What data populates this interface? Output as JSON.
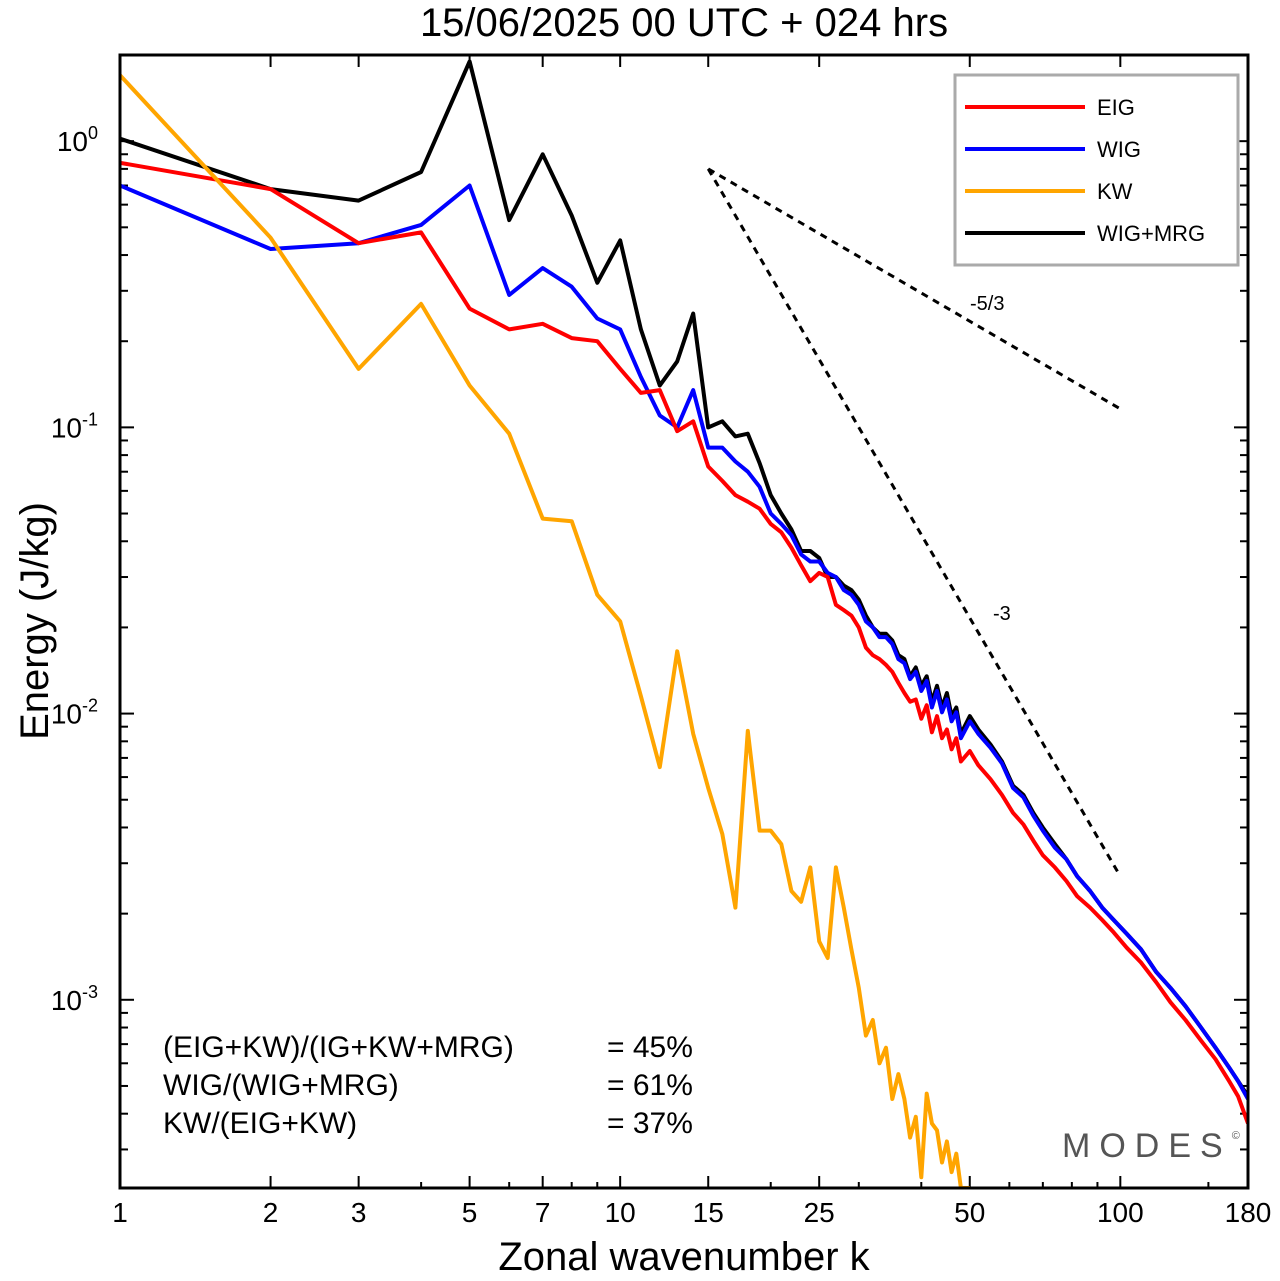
{
  "title": "15/06/2025  00 UTC  + 024 hrs",
  "chart_data": {
    "type": "line",
    "xlabel": "Zonal wavenumber k",
    "ylabel": "Energy (J/kg)",
    "x_scale": "log",
    "y_scale": "log",
    "xlim": [
      1,
      180
    ],
    "ylim": [
      0.00022,
      2.0
    ],
    "x_ticks": [
      1,
      2,
      3,
      5,
      7,
      10,
      15,
      25,
      50,
      100,
      180
    ],
    "y_ticks": [
      {
        "value": 1,
        "base": "10",
        "exp": "0"
      },
      {
        "value": 0.1,
        "base": "10",
        "exp": "-1"
      },
      {
        "value": 0.01,
        "base": "10",
        "exp": "-2"
      },
      {
        "value": 0.001,
        "base": "10",
        "exp": "-3"
      }
    ],
    "legend_position": "top-right",
    "series": [
      {
        "name": "WIG+MRG",
        "color": "#000000",
        "points": [
          [
            1,
            1.02
          ],
          [
            2,
            0.68
          ],
          [
            3,
            0.62
          ],
          [
            4,
            0.78
          ],
          [
            5,
            1.9
          ],
          [
            6,
            0.53
          ],
          [
            7,
            0.9
          ],
          [
            8,
            0.55
          ],
          [
            9,
            0.32
          ],
          [
            10,
            0.45
          ],
          [
            11,
            0.22
          ],
          [
            12,
            0.14
          ],
          [
            13,
            0.17
          ],
          [
            14,
            0.25
          ],
          [
            15,
            0.1
          ],
          [
            16,
            0.105
          ],
          [
            17,
            0.093
          ],
          [
            18,
            0.095
          ],
          [
            19,
            0.075
          ],
          [
            20,
            0.058
          ],
          [
            21,
            0.05
          ],
          [
            22,
            0.044
          ],
          [
            23,
            0.037
          ],
          [
            24,
            0.037
          ],
          [
            25,
            0.035
          ],
          [
            26,
            0.03
          ],
          [
            27,
            0.03
          ],
          [
            28,
            0.028
          ],
          [
            29,
            0.027
          ],
          [
            30,
            0.025
          ],
          [
            31,
            0.022
          ],
          [
            32,
            0.02
          ],
          [
            33,
            0.019
          ],
          [
            34,
            0.019
          ],
          [
            35,
            0.018
          ],
          [
            36,
            0.016
          ],
          [
            37,
            0.0155
          ],
          [
            38,
            0.0135
          ],
          [
            39,
            0.0145
          ],
          [
            40,
            0.0125
          ],
          [
            41,
            0.0135
          ],
          [
            42,
            0.011
          ],
          [
            43,
            0.0125
          ],
          [
            44,
            0.0105
          ],
          [
            45,
            0.0118
          ],
          [
            46,
            0.0098
          ],
          [
            47,
            0.0105
          ],
          [
            48,
            0.0085
          ],
          [
            50,
            0.0098
          ],
          [
            52,
            0.0088
          ],
          [
            55,
            0.0078
          ],
          [
            58,
            0.0068
          ],
          [
            61,
            0.0056
          ],
          [
            64,
            0.0052
          ],
          [
            67,
            0.0045
          ],
          [
            70,
            0.004
          ],
          [
            74,
            0.0035
          ],
          [
            78,
            0.0031
          ],
          [
            82,
            0.0027
          ],
          [
            87,
            0.0024
          ],
          [
            92,
            0.0021
          ],
          [
            97,
            0.0019
          ],
          [
            103,
            0.0017
          ],
          [
            110,
            0.0015
          ],
          [
            118,
            0.00125
          ],
          [
            126,
            0.0011
          ],
          [
            135,
            0.00095
          ],
          [
            145,
            0.0008
          ],
          [
            155,
            0.00068
          ],
          [
            165,
            0.00058
          ],
          [
            172,
            0.00052
          ],
          [
            180,
            0.00046
          ]
        ]
      },
      {
        "name": "WIG",
        "color": "#0000ff",
        "points": [
          [
            1,
            0.7
          ],
          [
            2,
            0.42
          ],
          [
            3,
            0.44
          ],
          [
            4,
            0.51
          ],
          [
            5,
            0.7
          ],
          [
            6,
            0.29
          ],
          [
            7,
            0.36
          ],
          [
            8,
            0.31
          ],
          [
            9,
            0.24
          ],
          [
            10,
            0.22
          ],
          [
            11,
            0.15
          ],
          [
            12,
            0.11
          ],
          [
            13,
            0.1
          ],
          [
            14,
            0.135
          ],
          [
            15,
            0.085
          ],
          [
            16,
            0.085
          ],
          [
            17,
            0.076
          ],
          [
            18,
            0.07
          ],
          [
            19,
            0.062
          ],
          [
            20,
            0.05
          ],
          [
            21,
            0.046
          ],
          [
            22,
            0.042
          ],
          [
            23,
            0.036
          ],
          [
            24,
            0.034
          ],
          [
            25,
            0.034
          ],
          [
            26,
            0.031
          ],
          [
            27,
            0.03
          ],
          [
            28,
            0.027
          ],
          [
            29,
            0.026
          ],
          [
            30,
            0.024
          ],
          [
            31,
            0.021
          ],
          [
            32,
            0.02
          ],
          [
            33,
            0.0185
          ],
          [
            34,
            0.0185
          ],
          [
            35,
            0.0175
          ],
          [
            36,
            0.0155
          ],
          [
            37,
            0.015
          ],
          [
            38,
            0.0132
          ],
          [
            39,
            0.014
          ],
          [
            40,
            0.012
          ],
          [
            41,
            0.013
          ],
          [
            42,
            0.0105
          ],
          [
            43,
            0.012
          ],
          [
            44,
            0.0101
          ],
          [
            45,
            0.0112
          ],
          [
            46,
            0.0094
          ],
          [
            47,
            0.0101
          ],
          [
            48,
            0.0082
          ],
          [
            50,
            0.0094
          ],
          [
            52,
            0.0085
          ],
          [
            55,
            0.0076
          ],
          [
            58,
            0.0067
          ],
          [
            61,
            0.0055
          ],
          [
            64,
            0.0051
          ],
          [
            67,
            0.0044
          ],
          [
            70,
            0.0039
          ],
          [
            74,
            0.0034
          ],
          [
            78,
            0.0031
          ],
          [
            82,
            0.0027
          ],
          [
            87,
            0.0024
          ],
          [
            92,
            0.0021
          ],
          [
            97,
            0.0019
          ],
          [
            103,
            0.0017
          ],
          [
            110,
            0.0015
          ],
          [
            118,
            0.00125
          ],
          [
            126,
            0.0011
          ],
          [
            135,
            0.00095
          ],
          [
            145,
            0.0008
          ],
          [
            155,
            0.00068
          ],
          [
            165,
            0.00058
          ],
          [
            172,
            0.00052
          ],
          [
            180,
            0.00045
          ]
        ]
      },
      {
        "name": "EIG",
        "color": "#ff0000",
        "points": [
          [
            1,
            0.84
          ],
          [
            2,
            0.68
          ],
          [
            3,
            0.44
          ],
          [
            4,
            0.48
          ],
          [
            5,
            0.26
          ],
          [
            6,
            0.22
          ],
          [
            7,
            0.23
          ],
          [
            8,
            0.205
          ],
          [
            9,
            0.2
          ],
          [
            10,
            0.16
          ],
          [
            11,
            0.132
          ],
          [
            12,
            0.135
          ],
          [
            13,
            0.097
          ],
          [
            14,
            0.105
          ],
          [
            15,
            0.073
          ],
          [
            16,
            0.065
          ],
          [
            17,
            0.058
          ],
          [
            18,
            0.055
          ],
          [
            19,
            0.052
          ],
          [
            20,
            0.046
          ],
          [
            21,
            0.043
          ],
          [
            22,
            0.038
          ],
          [
            23,
            0.033
          ],
          [
            24,
            0.029
          ],
          [
            25,
            0.031
          ],
          [
            26,
            0.03
          ],
          [
            27,
            0.024
          ],
          [
            28,
            0.023
          ],
          [
            29,
            0.022
          ],
          [
            30,
            0.02
          ],
          [
            31,
            0.017
          ],
          [
            32,
            0.016
          ],
          [
            33,
            0.0155
          ],
          [
            34,
            0.0148
          ],
          [
            35,
            0.014
          ],
          [
            36,
            0.0128
          ],
          [
            37,
            0.0118
          ],
          [
            38,
            0.011
          ],
          [
            39,
            0.0112
          ],
          [
            40,
            0.0096
          ],
          [
            41,
            0.0107
          ],
          [
            42,
            0.0086
          ],
          [
            43,
            0.0098
          ],
          [
            44,
            0.0082
          ],
          [
            45,
            0.0088
          ],
          [
            46,
            0.0075
          ],
          [
            47,
            0.0082
          ],
          [
            48,
            0.0068
          ],
          [
            50,
            0.0074
          ],
          [
            52,
            0.0066
          ],
          [
            55,
            0.0059
          ],
          [
            58,
            0.0052
          ],
          [
            61,
            0.0045
          ],
          [
            64,
            0.0041
          ],
          [
            67,
            0.0036
          ],
          [
            70,
            0.0032
          ],
          [
            74,
            0.0029
          ],
          [
            78,
            0.0026
          ],
          [
            82,
            0.0023
          ],
          [
            87,
            0.0021
          ],
          [
            92,
            0.0019
          ],
          [
            97,
            0.00172
          ],
          [
            103,
            0.00152
          ],
          [
            110,
            0.00135
          ],
          [
            118,
            0.00115
          ],
          [
            126,
            0.00098
          ],
          [
            135,
            0.00085
          ],
          [
            145,
            0.00072
          ],
          [
            155,
            0.00062
          ],
          [
            165,
            0.00052
          ],
          [
            172,
            0.00046
          ],
          [
            180,
            0.00037
          ]
        ]
      },
      {
        "name": "KW",
        "color": "#ffa500",
        "points": [
          [
            1,
            1.7
          ],
          [
            2,
            0.46
          ],
          [
            3,
            0.16
          ],
          [
            4,
            0.27
          ],
          [
            5,
            0.14
          ],
          [
            6,
            0.095
          ],
          [
            7,
            0.048
          ],
          [
            8,
            0.047
          ],
          [
            9,
            0.026
          ],
          [
            10,
            0.021
          ],
          [
            11,
            0.0115
          ],
          [
            12,
            0.0065
          ],
          [
            13,
            0.0165
          ],
          [
            14,
            0.0085
          ],
          [
            15,
            0.0055
          ],
          [
            16,
            0.0038
          ],
          [
            17,
            0.0021
          ],
          [
            18,
            0.0087
          ],
          [
            19,
            0.0039
          ],
          [
            20,
            0.0039
          ],
          [
            21,
            0.0035
          ],
          [
            22,
            0.0024
          ],
          [
            23,
            0.0022
          ],
          [
            24,
            0.0029
          ],
          [
            25,
            0.0016
          ],
          [
            26,
            0.0014
          ],
          [
            27,
            0.0029
          ],
          [
            28,
            0.0021
          ],
          [
            29,
            0.0015
          ],
          [
            30,
            0.0011
          ],
          [
            31,
            0.00075
          ],
          [
            32,
            0.00085
          ],
          [
            33,
            0.0006
          ],
          [
            34,
            0.00068
          ],
          [
            35,
            0.00045
          ],
          [
            36,
            0.00055
          ],
          [
            37,
            0.00045
          ],
          [
            38,
            0.00033
          ],
          [
            39,
            0.00039
          ],
          [
            40,
            0.00024
          ],
          [
            41,
            0.00047
          ],
          [
            42,
            0.00037
          ],
          [
            43,
            0.00035
          ],
          [
            44,
            0.00027
          ],
          [
            45,
            0.00032
          ],
          [
            46,
            0.00025
          ],
          [
            47,
            0.00029
          ],
          [
            48,
            0.00022
          ],
          [
            50,
            0.00022
          ]
        ]
      }
    ],
    "reference_slopes": [
      {
        "label": "-5/3",
        "x_start": 15,
        "y_start": 0.8,
        "x_end": 100,
        "y_end": 0.116
      },
      {
        "label": "-3",
        "x_start": 15,
        "y_start": 0.8,
        "x_end": 100,
        "y_end": 0.0027
      }
    ],
    "annotations": [
      {
        "label": "(EIG+KW)/(IG+KW+MRG)",
        "value": "= 45%"
      },
      {
        "label": "WIG/(WIG+MRG)",
        "value": "= 61%"
      },
      {
        "label": "KW/(EIG+KW)",
        "value": "= 37%"
      }
    ]
  },
  "branding": {
    "text": "MODES",
    "mark": "©"
  }
}
